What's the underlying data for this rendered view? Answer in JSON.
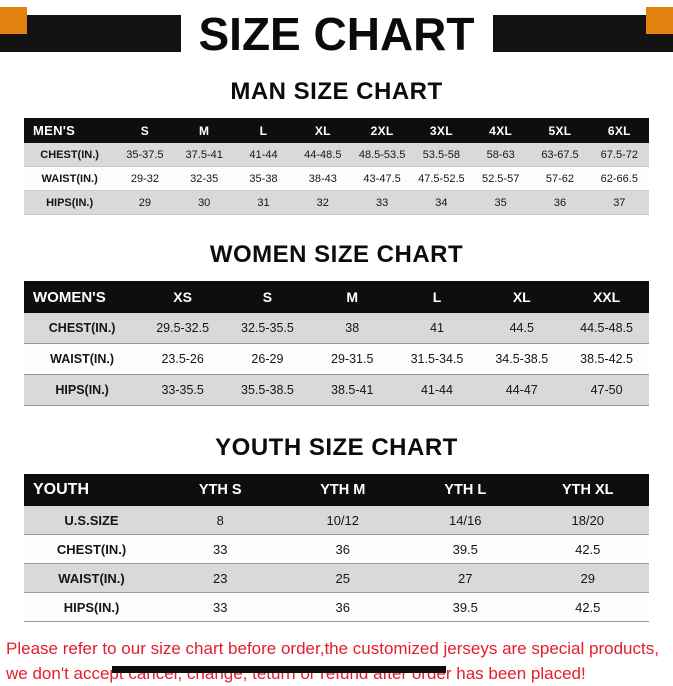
{
  "banner": {
    "title": "SIZE CHART"
  },
  "sections": [
    {
      "id": "men",
      "heading": "MAN SIZE CHART",
      "table": {
        "header": [
          "MEN'S",
          "S",
          "M",
          "L",
          "XL",
          "2XL",
          "3XL",
          "4XL",
          "5XL",
          "6XL"
        ],
        "rows": [
          [
            "CHEST(IN.)",
            "35-37.5",
            "37.5-41",
            "41-44",
            "44-48.5",
            "48.5-53.5",
            "53.5-58",
            "58-63",
            "63-67.5",
            "67.5-72"
          ],
          [
            "WAIST(IN.)",
            "29-32",
            "32-35",
            "35-38",
            "38-43",
            "43-47.5",
            "47.5-52.5",
            "52.5-57",
            "57-62",
            "62-66.5"
          ],
          [
            "HIPS(IN.)",
            "29",
            "30",
            "31",
            "32",
            "33",
            "34",
            "35",
            "36",
            "37"
          ]
        ]
      }
    },
    {
      "id": "women",
      "heading": "WOMEN SIZE CHART",
      "table": {
        "header": [
          "WOMEN'S",
          "XS",
          "S",
          "M",
          "L",
          "XL",
          "XXL"
        ],
        "rows": [
          [
            "CHEST(IN.)",
            "29.5-32.5",
            "32.5-35.5",
            "38",
            "41",
            "44.5",
            "44.5-48.5"
          ],
          [
            "WAIST(IN.)",
            "23.5-26",
            "26-29",
            "29-31.5",
            "31.5-34.5",
            "34.5-38.5",
            "38.5-42.5"
          ],
          [
            "HIPS(IN.)",
            "33-35.5",
            "35.5-38.5",
            "38.5-41",
            "41-44",
            "44-47",
            "47-50"
          ]
        ]
      }
    },
    {
      "id": "youth",
      "heading": "YOUTH SIZE CHART",
      "table": {
        "header": [
          "YOUTH",
          "YTH S",
          "YTH M",
          "YTH L",
          "YTH XL"
        ],
        "rows": [
          [
            "U.S.SIZE",
            "8",
            "10/12",
            "14/16",
            "18/20"
          ],
          [
            "CHEST(IN.)",
            "33",
            "36",
            "39.5",
            "42.5"
          ],
          [
            "WAIST(IN.)",
            "23",
            "25",
            "27",
            "29"
          ],
          [
            "HIPS(IN.)",
            "33",
            "36",
            "39.5",
            "42.5"
          ]
        ]
      }
    }
  ],
  "footer": {
    "line1": "Please refer to our size chart before order,the customized jerseys are special products,",
    "line2": "we don't accept cancel, change, teturn or refund after order has been placed!"
  },
  "colors": {
    "accent_orange": "#e3820e",
    "header_black": "#0e0e0e",
    "row_gray": "#d9d9d9",
    "notice_red": "#e51c2c"
  }
}
